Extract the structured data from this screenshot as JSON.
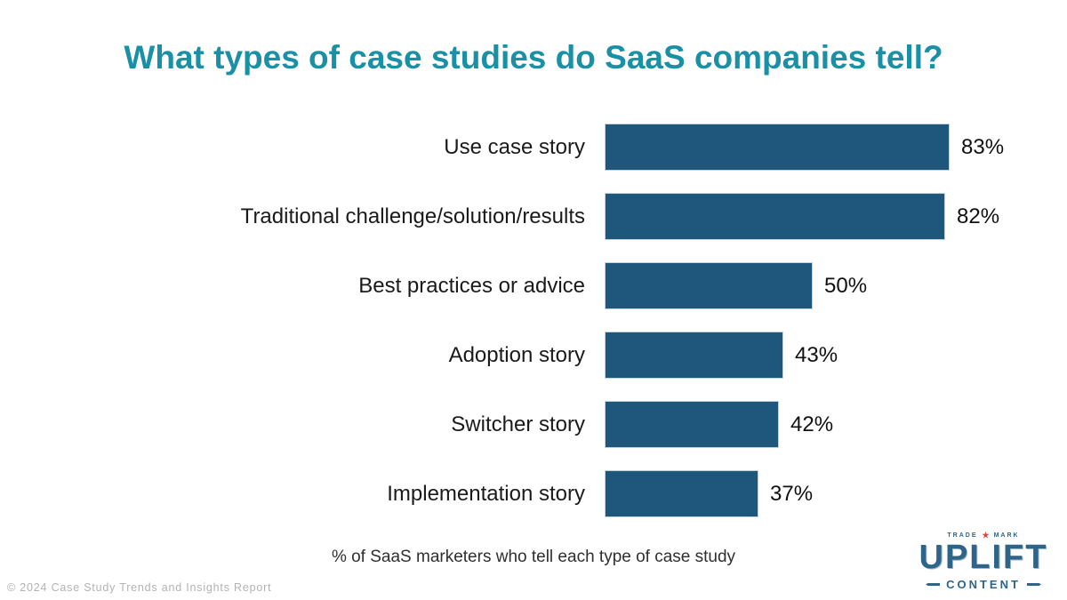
{
  "chart_data": {
    "type": "bar",
    "orientation": "horizontal",
    "title": "What types of case studies do SaaS companies tell?",
    "categories": [
      "Use case story",
      "Traditional challenge/solution/results",
      "Best practices or advice",
      "Adoption story",
      "Switcher story",
      "Implementation story"
    ],
    "values": [
      83,
      82,
      50,
      43,
      42,
      37
    ],
    "value_suffix": "%",
    "xlim": [
      0,
      100
    ],
    "grid": false,
    "legend": false,
    "caption": "% of SaaS marketers who tell each type of case study",
    "bar_color": "#1f567c",
    "bar_border_color": "#c2d3dd",
    "title_color": "#1a90a6",
    "label_color": "#1a1a1a"
  },
  "footer": {
    "copyright": "© 2024 Case Study Trends and Insights Report"
  },
  "logo": {
    "trademark_left": "TRADE",
    "star": "★",
    "trademark_right": "MARK",
    "name": "UPLIFT",
    "subtitle": "CONTENT",
    "color": "#2e6488",
    "star_color": "#d8453c"
  }
}
